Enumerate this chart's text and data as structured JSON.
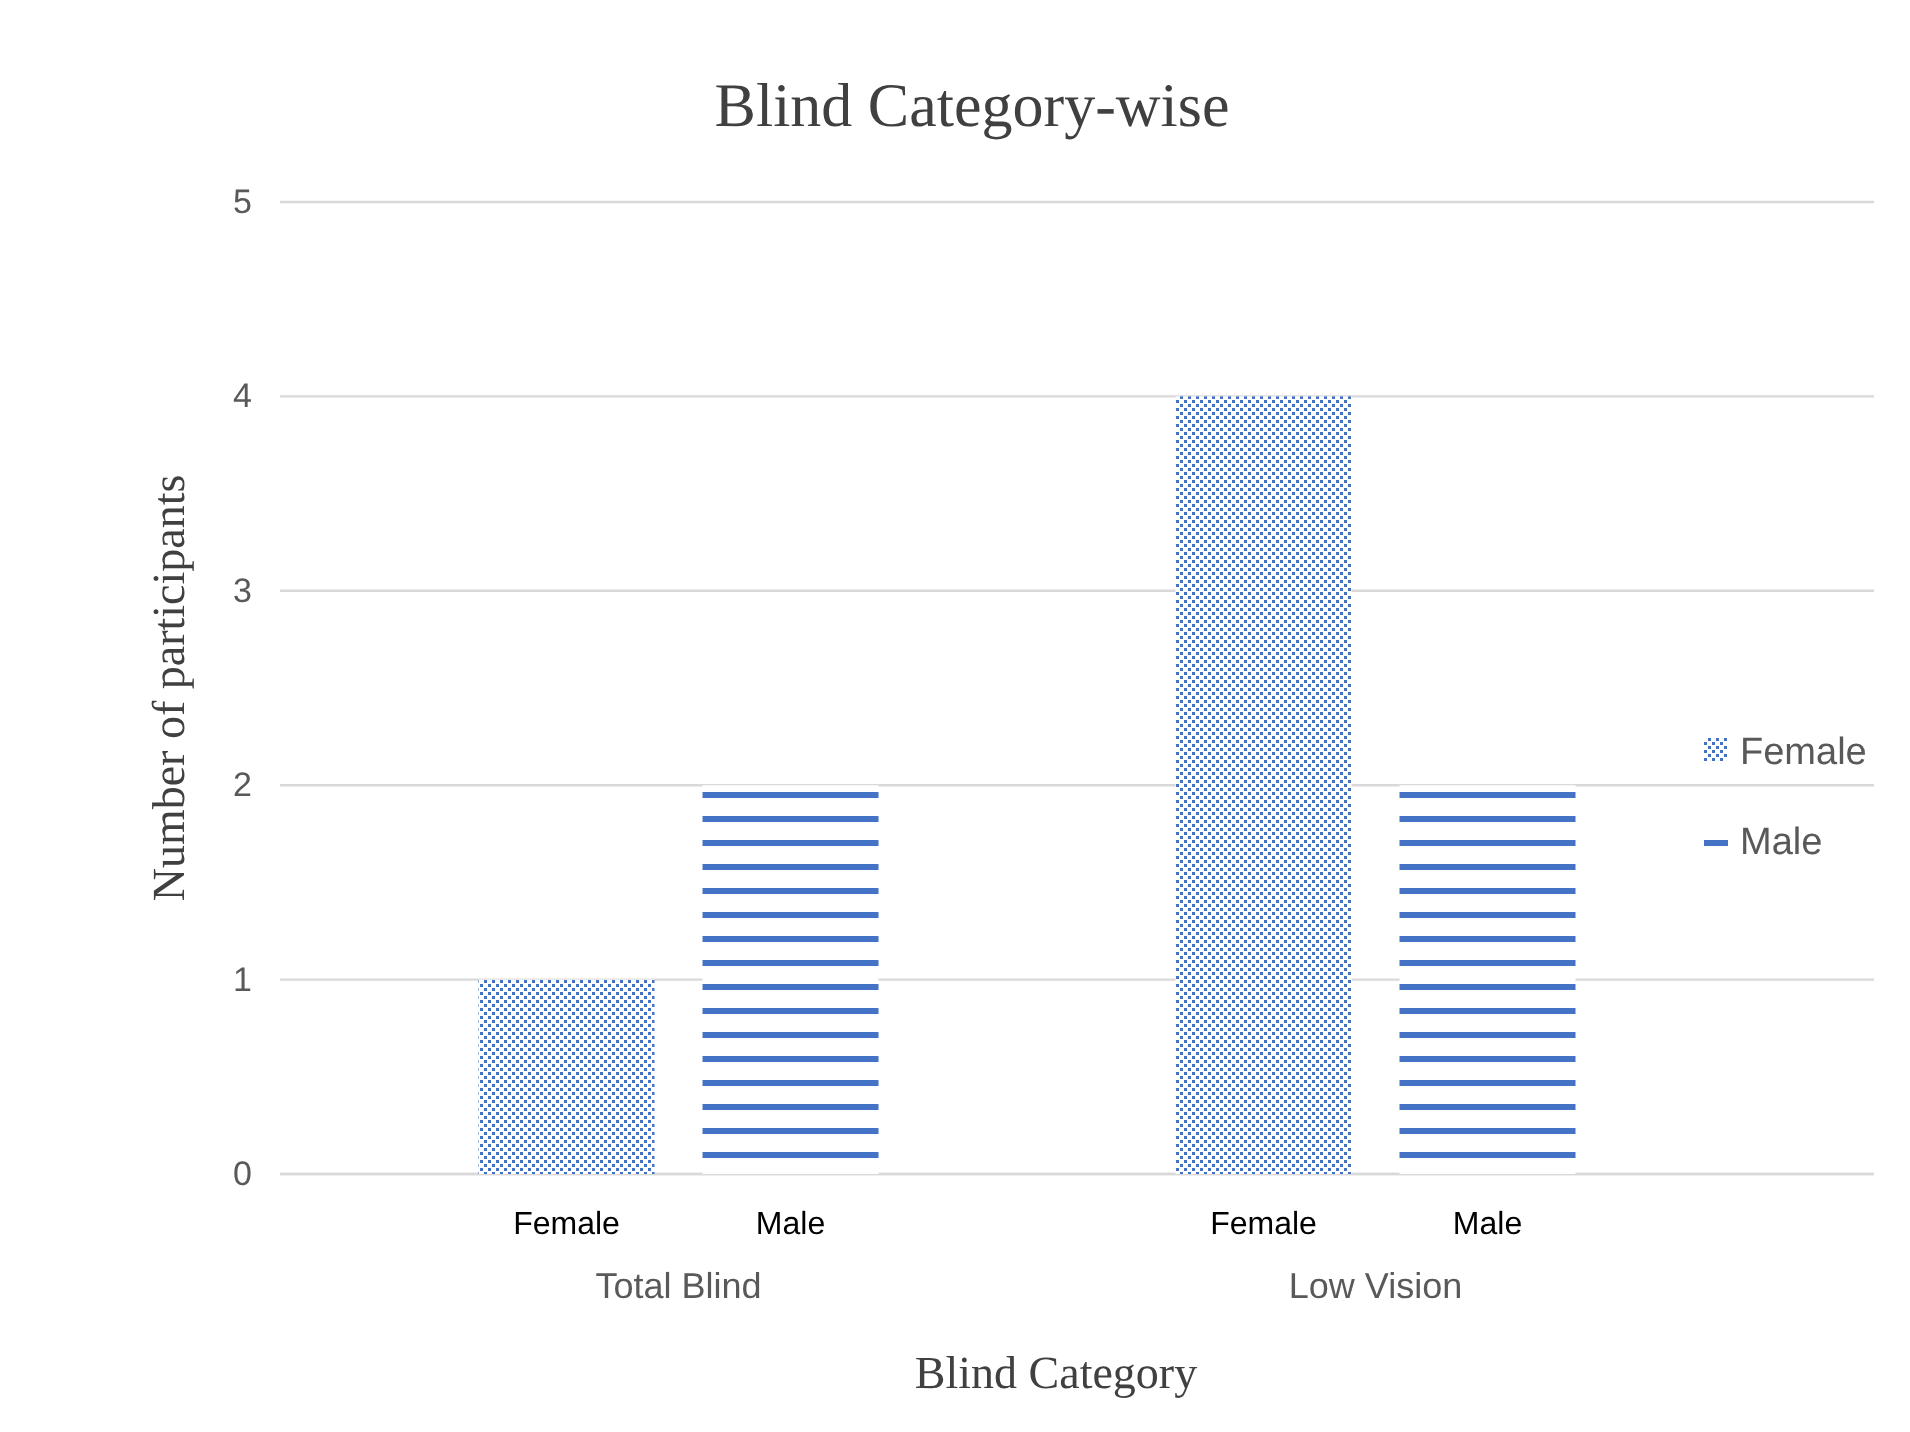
{
  "chart_data": {
    "type": "bar",
    "title": "Blind Category-wise",
    "xlabel": "Blind Category",
    "ylabel": "Number of  participants",
    "categories": [
      "Total Blind",
      "Low Vision"
    ],
    "series": [
      {
        "name": "Female",
        "color": "#4472c4",
        "values": [
          1,
          4
        ]
      },
      {
        "name": "Male",
        "color": "#4472c4",
        "values": [
          2,
          2
        ]
      }
    ],
    "ylim": [
      0,
      5
    ],
    "yticks": [
      0,
      1,
      2,
      3,
      4,
      5
    ],
    "grid": "y",
    "legend": "right"
  }
}
